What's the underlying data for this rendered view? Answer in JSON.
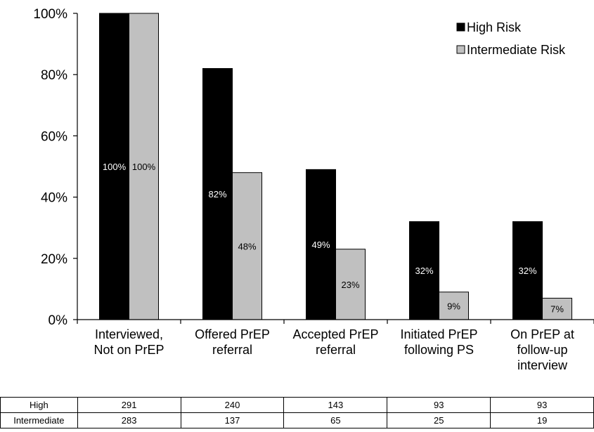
{
  "chart_data": {
    "type": "bar",
    "categories": [
      [
        "Interviewed,",
        "Not on PrEP"
      ],
      [
        "Offered PrEP",
        "referral"
      ],
      [
        "Accepted PrEP",
        "referral"
      ],
      [
        "Initiated PrEP",
        "following PS"
      ],
      [
        "On PrEP at",
        "follow-up",
        "interview"
      ]
    ],
    "series": [
      {
        "name": "High Risk",
        "color": "#000000",
        "label_color": "#ffffff",
        "values": [
          100,
          82,
          49,
          32,
          32
        ],
        "labels": [
          "100%",
          "82%",
          "49%",
          "32%",
          "32%"
        ]
      },
      {
        "name": "Intermediate Risk",
        "color": "#c0c0c0",
        "label_color": "#000000",
        "values": [
          100,
          48,
          23,
          9,
          7
        ],
        "labels": [
          "100%",
          "48%",
          "23%",
          "9%",
          "7%"
        ]
      }
    ],
    "ylim": [
      0,
      100
    ],
    "yticks": [
      "0%",
      "20%",
      "40%",
      "60%",
      "80%",
      "100%"
    ],
    "grid": false,
    "legend_position": "top-right"
  },
  "table": {
    "rows": [
      {
        "label": "High",
        "values": [
          "291",
          "240",
          "143",
          "93",
          "93"
        ]
      },
      {
        "label": "Intermediate",
        "values": [
          "283",
          "137",
          "65",
          "25",
          "19"
        ]
      }
    ]
  }
}
